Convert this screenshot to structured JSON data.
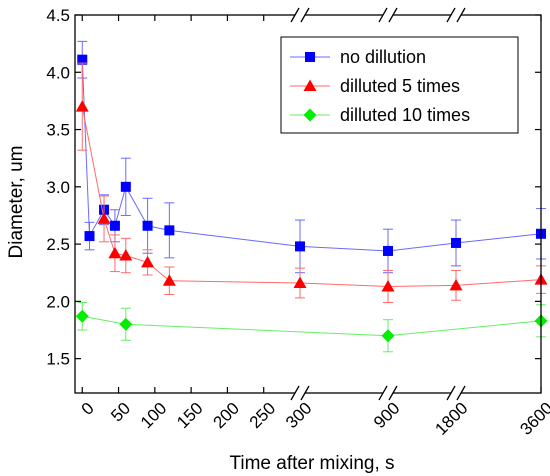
{
  "chart_data": {
    "type": "line",
    "xlabel": "Time after mixing, s",
    "ylabel": "Diameter, um",
    "ylim": [
      1.2,
      4.5
    ],
    "yticks": [
      1.5,
      2.0,
      2.5,
      3.0,
      3.5,
      4.0,
      4.5
    ],
    "x_axis_segments": [
      {
        "range": [
          -10,
          300
        ],
        "ticks": [
          0,
          50,
          100,
          150,
          200,
          250,
          300
        ]
      },
      {
        "range": [
          300,
          900
        ],
        "ticks": [
          900
        ]
      },
      {
        "range": [
          900,
          1800
        ],
        "ticks": [
          1800
        ]
      },
      {
        "range": [
          1800,
          3600
        ],
        "ticks": [
          3600
        ]
      }
    ],
    "legend_position": "top-right",
    "series": [
      {
        "name": "no dillution",
        "color": "#0000ff",
        "line_color": "#6a6aff",
        "marker": "square",
        "x": [
          0,
          10,
          30,
          45,
          60,
          90,
          120,
          300,
          900,
          1800,
          3600
        ],
        "y": [
          4.11,
          2.57,
          2.8,
          2.66,
          3.0,
          2.66,
          2.62,
          2.48,
          2.44,
          2.51,
          2.59
        ],
        "err": [
          0.16,
          0.12,
          0.13,
          0.14,
          0.25,
          0.24,
          0.24,
          0.23,
          0.19,
          0.2,
          0.22
        ]
      },
      {
        "name": "dilluted 5 times",
        "color": "#ff0000",
        "line_color": "#ff6a6a",
        "marker": "triangle",
        "x": [
          0,
          30,
          45,
          60,
          90,
          120,
          300,
          900,
          1800,
          3600
        ],
        "y": [
          3.7,
          2.72,
          2.42,
          2.4,
          2.34,
          2.18,
          2.16,
          2.13,
          2.14,
          2.19
        ],
        "err": [
          0.38,
          0.2,
          0.16,
          0.15,
          0.11,
          0.12,
          0.13,
          0.14,
          0.13,
          0.12
        ]
      },
      {
        "name": "dilluted 10 times",
        "color": "#00ee00",
        "line_color": "#66ee66",
        "marker": "diamond",
        "x": [
          0,
          60,
          900,
          3600
        ],
        "y": [
          1.87,
          1.8,
          1.7,
          1.83
        ],
        "err": [
          0.12,
          0.14,
          0.14,
          0.14
        ]
      }
    ]
  }
}
